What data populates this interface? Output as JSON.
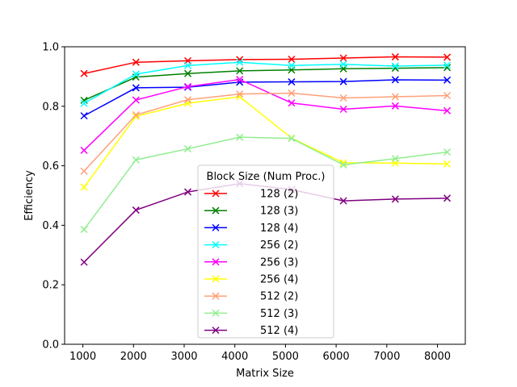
{
  "chart_data": {
    "type": "line",
    "title": "",
    "xlabel": "Matrix Size",
    "ylabel": "Efficiency",
    "xlim": [
      640,
      8550
    ],
    "ylim": [
      0.0,
      1.0
    ],
    "xticks": [
      "1000",
      "2000",
      "3000",
      "4000",
      "5000",
      "6000",
      "7000",
      "8000"
    ],
    "yticks": [
      "0.0",
      "0.2",
      "0.4",
      "0.6",
      "0.8",
      "1.0"
    ],
    "grid": false,
    "marker": "x",
    "x": [
      1024,
      2048,
      3072,
      4096,
      5120,
      6144,
      7168,
      8192
    ],
    "legend": {
      "title": "Block Size (Num Proc.)",
      "placement": "center-bottom"
    },
    "series": [
      {
        "name": "128 (2)",
        "color": "#ff0000",
        "values": [
          0.91,
          0.948,
          0.953,
          0.957,
          0.958,
          0.962,
          0.966,
          0.965
        ]
      },
      {
        "name": "128 (3)",
        "color": "#008000",
        "values": [
          0.82,
          0.898,
          0.91,
          0.919,
          0.922,
          0.926,
          0.928,
          0.93
        ]
      },
      {
        "name": "128 (4)",
        "color": "#0000ff",
        "values": [
          0.768,
          0.862,
          0.864,
          0.881,
          0.882,
          0.883,
          0.889,
          0.888
        ]
      },
      {
        "name": "256 (2)",
        "color": "#00ffff",
        "values": [
          0.81,
          0.908,
          0.937,
          0.948,
          0.937,
          0.941,
          0.935,
          0.938
        ]
      },
      {
        "name": "256 (3)",
        "color": "#ff00ff",
        "values": [
          0.652,
          0.821,
          0.866,
          0.89,
          0.811,
          0.79,
          0.801,
          0.785
        ]
      },
      {
        "name": "256 (4)",
        "color": "#ffff00",
        "values": [
          0.528,
          0.766,
          0.81,
          0.832,
          0.693,
          0.61,
          0.609,
          0.606
        ]
      },
      {
        "name": "512 (2)",
        "color": "#ffa07a",
        "values": [
          0.582,
          0.771,
          0.822,
          0.841,
          0.844,
          0.828,
          0.832,
          0.836
        ]
      },
      {
        "name": "512 (3)",
        "color": "#90ee90",
        "values": [
          0.386,
          0.62,
          0.657,
          0.696,
          0.692,
          0.603,
          0.624,
          0.646
        ]
      },
      {
        "name": "512 (4)",
        "color": "#800080",
        "values": [
          0.276,
          0.451,
          0.512,
          0.54,
          0.52,
          0.482,
          0.488,
          0.491
        ]
      }
    ]
  }
}
